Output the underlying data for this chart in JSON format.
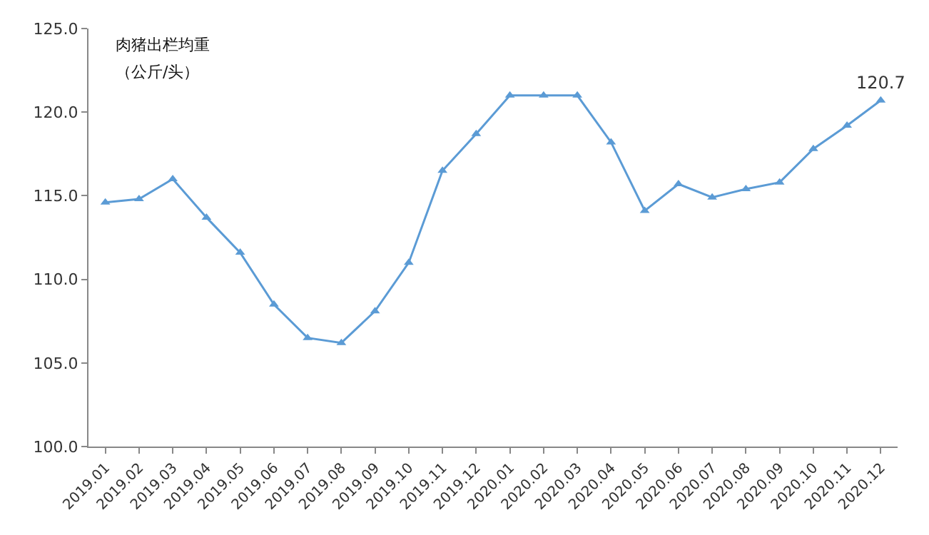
{
  "chart_data": {
    "type": "line",
    "categories": [
      "2019.01",
      "2019.02",
      "2019.03",
      "2019.04",
      "2019.05",
      "2019.06",
      "2019.07",
      "2019.08",
      "2019.09",
      "2019.10",
      "2019.11",
      "2019.12",
      "2020.01",
      "2020.02",
      "2020.03",
      "2020.04",
      "2020.05",
      "2020.06",
      "2020.07",
      "2020.08",
      "2020.09",
      "2020.10",
      "2020.11",
      "2020.12"
    ],
    "series": [
      {
        "color": "#5b9bd5",
        "values": [
          114.6,
          114.8,
          116.0,
          113.7,
          111.6,
          108.5,
          106.5,
          106.2,
          108.1,
          111.0,
          116.5,
          118.7,
          121.0,
          121.0,
          121.0,
          118.2,
          114.1,
          115.7,
          114.9,
          115.4,
          115.8,
          117.8,
          119.2,
          120.7
        ]
      }
    ],
    "ylim": [
      100,
      125
    ],
    "yticks": [
      {
        "value": 100,
        "label": "100.0"
      },
      {
        "value": 105,
        "label": "105.0"
      },
      {
        "value": 110,
        "label": "110.0"
      },
      {
        "value": 115,
        "label": "115.0"
      },
      {
        "value": 120,
        "label": "120.0"
      },
      {
        "value": 125,
        "label": "125.0"
      }
    ],
    "annotations": [
      "肉猪出栏均重",
      "（公斤/头）",
      {
        "text": "120.7",
        "x": "2020.12",
        "y": 120.7
      }
    ],
    "marker": "triangle",
    "line_style": "solid"
  }
}
